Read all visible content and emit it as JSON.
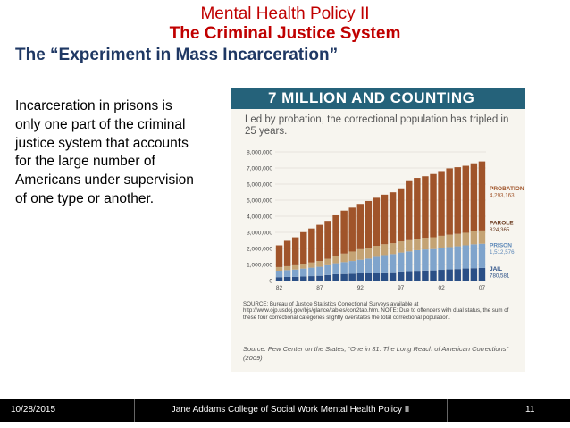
{
  "slide": {
    "title_line1": "Mental Health Policy II",
    "title_line2": "The Criminal Justice System",
    "subtitle": "The “Experiment in Mass Incarceration”",
    "body": "Incarceration in prisons is only one part of the criminal justice system that accounts for the large number of Americans under supervision of one type or another."
  },
  "figure": {
    "header": "7 MILLION AND COUNTING",
    "subheader": "Led by probation, the correctional population has tripled in 25 years.",
    "note": "SOURCE: Bureau of Justice Statistics Correctional Surveys available at http://www.ojp.usdoj.gov/bjs/glance/tables/corr2tab.htm. NOTE: Due to offenders with dual status, the sum of these four correctional categories slightly overstates the total correctional population.",
    "source": "Source: Pew Center on the States, “One in 31: The Long Reach of American Corrections” (2009)"
  },
  "footer": {
    "date": "10/28/2015",
    "center": "Jane Addams College of Social Work Mental Health Policy II",
    "page": "11"
  },
  "chart_data": {
    "type": "bar",
    "stacked": true,
    "x": [
      1982,
      1983,
      1984,
      1985,
      1986,
      1987,
      1988,
      1989,
      1990,
      1991,
      1992,
      1993,
      1994,
      1995,
      1996,
      1997,
      1998,
      1999,
      2000,
      2001,
      2002,
      2003,
      2004,
      2005,
      2006,
      2007
    ],
    "tick_labels": [
      "82",
      "87",
      "92",
      "97",
      "02",
      "07"
    ],
    "series": [
      {
        "name": "JAIL",
        "color": "#2a4f86",
        "values": [
          210000,
          224000,
          234000,
          256000,
          274000,
          295000,
          343000,
          395000,
          405000,
          426000,
          444000,
          459000,
          486000,
          507000,
          518000,
          567000,
          592000,
          605000,
          621000,
          631000,
          665000,
          691000,
          713000,
          747000,
          766000,
          780581
        ]
      },
      {
        "name": "PRISON",
        "color": "#7fa4cc",
        "values": [
          402000,
          423000,
          448000,
          487000,
          526000,
          562000,
          607000,
          683000,
          743000,
          792000,
          851000,
          909000,
          990000,
          1078000,
          1128000,
          1177000,
          1224000,
          1287000,
          1316000,
          1331000,
          1368000,
          1394000,
          1422000,
          1448000,
          1492000,
          1512576
        ]
      },
      {
        "name": "PAROLE",
        "color": "#c4a374",
        "values": [
          225000,
          246000,
          268000,
          300000,
          326000,
          362000,
          407000,
          456000,
          531000,
          590000,
          658000,
          676000,
          690000,
          679000,
          680000,
          695000,
          696000,
          714000,
          724000,
          732000,
          751000,
          770000,
          772000,
          780000,
          798000,
          824365
        ]
      },
      {
        "name": "PROBATION",
        "color": "#a0542a",
        "values": [
          1357000,
          1582000,
          1740000,
          1969000,
          2114000,
          2247000,
          2356000,
          2523000,
          2670000,
          2729000,
          2812000,
          2903000,
          2981000,
          3078000,
          3164000,
          3297000,
          3670000,
          3780000,
          3826000,
          3932000,
          4024000,
          4120000,
          4143000,
          4162000,
          4237000,
          4293163
        ]
      }
    ],
    "legend_labels": [
      {
        "name": "PROBATION",
        "value": "4,293,163",
        "color": "#a0542a"
      },
      {
        "name": "PAROLE",
        "value": "824,365",
        "color": "#6b3a1f"
      },
      {
        "name": "PRISON",
        "value": "1,512,576",
        "color": "#5b87b8"
      },
      {
        "name": "JAIL",
        "value": "780,581",
        "color": "#2a4f86"
      }
    ],
    "y_ticks": [
      "0",
      "1,000,000",
      "2,000,000",
      "3,000,000",
      "4,000,000",
      "5,000,000",
      "6,000,000",
      "7,000,000",
      "8,000,000"
    ],
    "ylim": [
      0,
      8000000
    ],
    "title": "7 MILLION AND COUNTING"
  }
}
